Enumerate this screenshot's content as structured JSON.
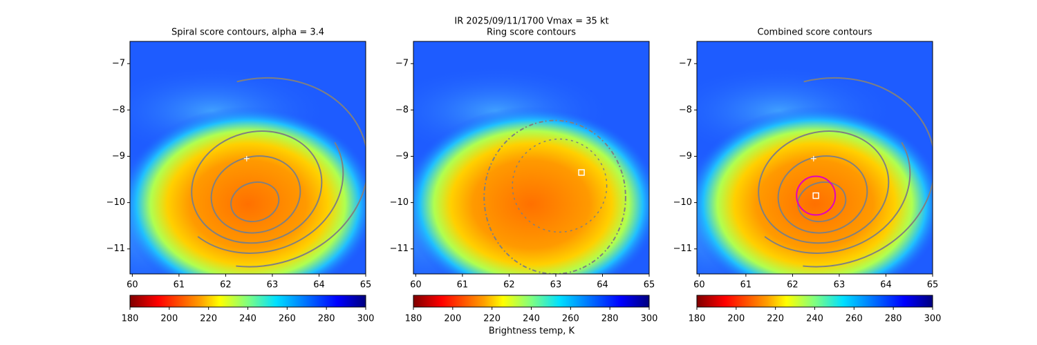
{
  "title": "IR  2025/09/11/1700    Vmax = 35 kt",
  "colorbar_label": "Brightness temp, K",
  "chart_data": [
    {
      "type": "heatmap",
      "title": "Spiral score contours, alpha =  3.4",
      "colormap": "jet_r",
      "xlim": [
        59.95,
        65
      ],
      "ylim": [
        -11.54,
        -6.52
      ],
      "xticks": [
        60,
        61,
        62,
        63,
        64,
        65
      ],
      "yticks": [
        {
          "value": -7,
          "label": "−7"
        },
        {
          "value": -8,
          "label": "−8"
        },
        {
          "value": -9,
          "label": "−9"
        },
        {
          "value": -10,
          "label": "−10"
        },
        {
          "value": -11,
          "label": "−11"
        }
      ],
      "colorbar": {
        "lim": [
          180,
          300
        ],
        "ticks": [
          180,
          200,
          220,
          240,
          260,
          280,
          300
        ]
      },
      "markers": [
        {
          "shape": "plus",
          "x": 62.45,
          "y": -9.05,
          "color": "#ffffff"
        }
      ]
    },
    {
      "type": "heatmap",
      "title": "Ring score contours",
      "colormap": "jet_r",
      "xlim": [
        59.95,
        65
      ],
      "ylim": [
        -11.54,
        -6.52
      ],
      "xticks": [
        60,
        61,
        62,
        63,
        64,
        65
      ],
      "yticks": [
        {
          "value": -7,
          "label": "−7"
        },
        {
          "value": -8,
          "label": "−8"
        },
        {
          "value": -9,
          "label": "−9"
        },
        {
          "value": -10,
          "label": "−10"
        },
        {
          "value": -11,
          "label": "−11"
        }
      ],
      "colorbar": {
        "lim": [
          180,
          300
        ],
        "ticks": [
          180,
          200,
          220,
          240,
          260,
          280,
          300
        ]
      },
      "markers": [
        {
          "shape": "square",
          "x": 63.55,
          "y": -9.35,
          "color": "#ffffff"
        }
      ]
    },
    {
      "type": "heatmap",
      "title": "Combined score contours",
      "colormap": "jet_r",
      "xlim": [
        59.95,
        65
      ],
      "ylim": [
        -11.54,
        -6.52
      ],
      "xticks": [
        60,
        61,
        62,
        63,
        64,
        65
      ],
      "yticks": [
        {
          "value": -7,
          "label": "−7"
        },
        {
          "value": -8,
          "label": "−8"
        },
        {
          "value": -9,
          "label": "−9"
        },
        {
          "value": -10,
          "label": "−10"
        },
        {
          "value": -11,
          "label": "−11"
        }
      ],
      "colorbar": {
        "lim": [
          180,
          300
        ],
        "ticks": [
          180,
          200,
          220,
          240,
          260,
          280,
          300
        ]
      },
      "markers": [
        {
          "shape": "plus",
          "x": 62.45,
          "y": -9.05,
          "color": "#ffffff"
        },
        {
          "shape": "square",
          "x": 62.5,
          "y": -9.85,
          "color": "#ffffff"
        },
        {
          "shape": "circle",
          "x": 62.5,
          "y": -9.85,
          "color": "#e000c0"
        }
      ]
    }
  ]
}
